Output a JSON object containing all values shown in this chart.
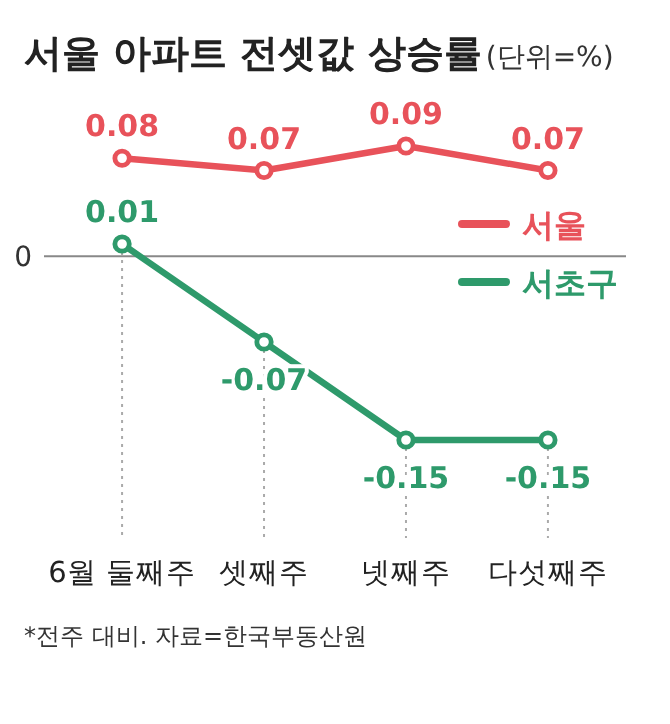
{
  "chart_data": {
    "type": "line",
    "title": "서울 아파트 전셋값 상승률",
    "subtitle": "(단위=%)",
    "categories": [
      "6월 둘째주",
      "셋째주",
      "넷째주",
      "다섯째주"
    ],
    "series": [
      {
        "name": "서울",
        "color": "#e8525a",
        "values": [
          0.08,
          0.07,
          0.09,
          0.07
        ]
      },
      {
        "name": "서초구",
        "color": "#2e9a6b",
        "values": [
          0.01,
          -0.07,
          -0.15,
          -0.15
        ]
      }
    ],
    "grid": "x",
    "marker": "circle",
    "line_style": "solid",
    "data_labels": true,
    "legend": "top right",
    "ref_lines": [
      {
        "axis": "y",
        "value": 0,
        "label": "0",
        "color": "#888888"
      }
    ],
    "annotations": [
      "*전주 대비. 자료=한국부동산원"
    ]
  }
}
